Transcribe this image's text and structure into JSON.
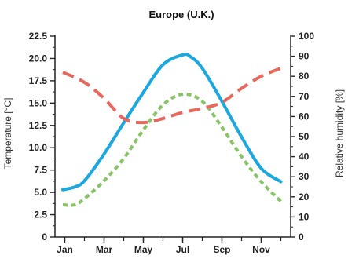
{
  "chart_data": {
    "type": "line",
    "title": "Europe (U.K.)",
    "ylabel": "Temperature  [°C]",
    "y2label": "Relative humidity  [%]",
    "x_tick_labels": [
      "Jan",
      "Mar",
      "May",
      "Jul",
      "Sep",
      "Nov"
    ],
    "x_tick_positions": [
      1,
      3,
      5,
      7,
      9,
      11
    ],
    "xlim": [
      0.5,
      12.5
    ],
    "ylim": [
      0,
      22.5
    ],
    "y2lim": [
      0,
      100
    ],
    "y_ticks": [
      "0",
      "2.5",
      "5.0",
      "7.5",
      "10.0",
      "12.5",
      "15.0",
      "17.5",
      "20.0",
      "22.5"
    ],
    "y2_ticks": [
      "0",
      "10",
      "20",
      "30",
      "40",
      "50",
      "60",
      "70",
      "80",
      "90",
      "100"
    ],
    "grid": false,
    "series": [
      {
        "axis": "left",
        "color": "#1ba8e0",
        "style": "solid",
        "x": [
          0.9,
          1.5,
          2,
          3,
          4,
          5,
          6,
          7,
          7.4,
          8,
          9,
          10,
          11,
          12
        ],
        "y": [
          5.3,
          5.6,
          6.3,
          9.3,
          12.8,
          16.2,
          19.3,
          20.4,
          20.2,
          18.9,
          15.2,
          11.2,
          7.7,
          6.2
        ]
      },
      {
        "axis": "left",
        "color": "#86c466",
        "style": "dotted",
        "x": [
          0.9,
          1.5,
          2,
          3,
          4,
          5,
          6,
          7,
          8,
          9,
          10,
          11,
          12
        ],
        "y": [
          3.6,
          3.6,
          4.3,
          6.3,
          8.8,
          12.0,
          14.8,
          16.0,
          15.2,
          12.3,
          9.0,
          6.2,
          4.0
        ]
      },
      {
        "axis": "right",
        "color": "#e8685e",
        "style": "dashed",
        "x": [
          0.9,
          2,
          3,
          4,
          5,
          6,
          7,
          8,
          9,
          10,
          11,
          12
        ],
        "y": [
          82,
          77,
          69,
          59,
          57,
          59,
          62,
          64,
          67,
          74,
          80,
          84
        ]
      }
    ]
  }
}
